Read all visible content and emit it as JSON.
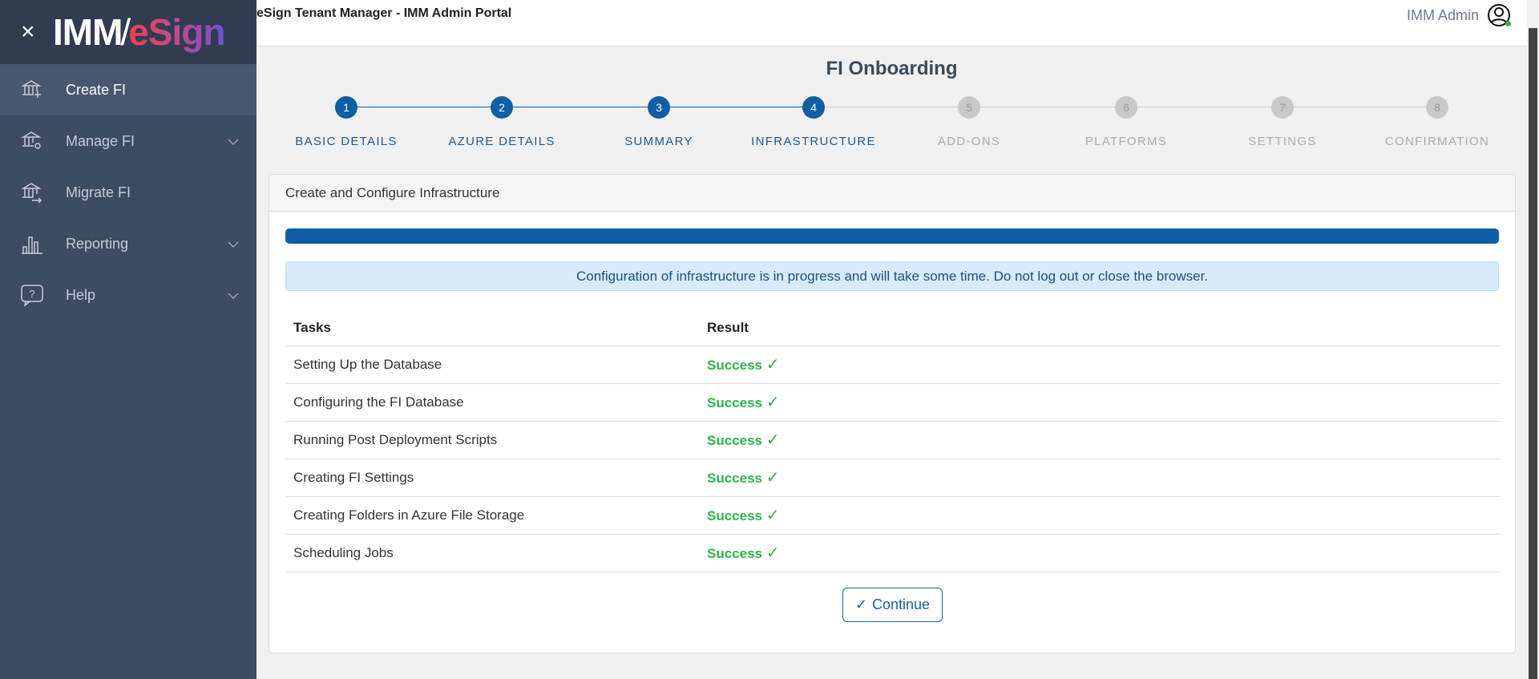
{
  "sidebar": {
    "logo": {
      "imm": "IMM",
      "esign": "eSign"
    },
    "items": [
      {
        "label": "Create FI",
        "icon": "bank-plus-icon",
        "active": true,
        "expandable": false
      },
      {
        "label": "Manage FI",
        "icon": "bank-gear-icon",
        "expandable": true
      },
      {
        "label": "Migrate FI",
        "icon": "bank-arrow-icon",
        "expandable": false
      },
      {
        "label": "Reporting",
        "icon": "bar-chart-icon",
        "expandable": true
      },
      {
        "label": "Help",
        "icon": "help-bubble-icon",
        "expandable": true
      }
    ]
  },
  "header": {
    "title": "eSign Tenant Manager - IMM Admin Portal",
    "user": "IMM Admin",
    "status_color": "#2cb34a"
  },
  "page": {
    "title": "FI Onboarding",
    "steps": [
      {
        "n": "1",
        "label": "BASIC DETAILS",
        "done": true
      },
      {
        "n": "2",
        "label": "AZURE DETAILS",
        "done": true
      },
      {
        "n": "3",
        "label": "SUMMARY",
        "done": true
      },
      {
        "n": "4",
        "label": "INFRASTRUCTURE",
        "done": true
      },
      {
        "n": "5",
        "label": "ADD-ONS",
        "done": false
      },
      {
        "n": "6",
        "label": "PLATFORMS",
        "done": false
      },
      {
        "n": "7",
        "label": "SETTINGS",
        "done": false
      },
      {
        "n": "8",
        "label": "CONFIRMATION",
        "done": false
      }
    ],
    "card": {
      "title": "Create and Configure Infrastructure",
      "progress_percent": 100,
      "info": "Configuration of infrastructure is in progress and will take some time. Do not log out or close the browser.",
      "columns": [
        "Tasks",
        "Result"
      ],
      "rows": [
        [
          "Setting Up the Database",
          "Success"
        ],
        [
          "Configuring the FI Database",
          "Success"
        ],
        [
          "Running Post Deployment Scripts",
          "Success"
        ],
        [
          "Creating FI Settings",
          "Success"
        ],
        [
          "Creating Folders in Azure File Storage",
          "Success"
        ],
        [
          "Scheduling Jobs",
          "Success"
        ]
      ],
      "continue": "Continue"
    }
  },
  "colors": {
    "accent": "#0e5fa5",
    "success": "#2cb34a",
    "inactive": "#c8c8c8"
  }
}
